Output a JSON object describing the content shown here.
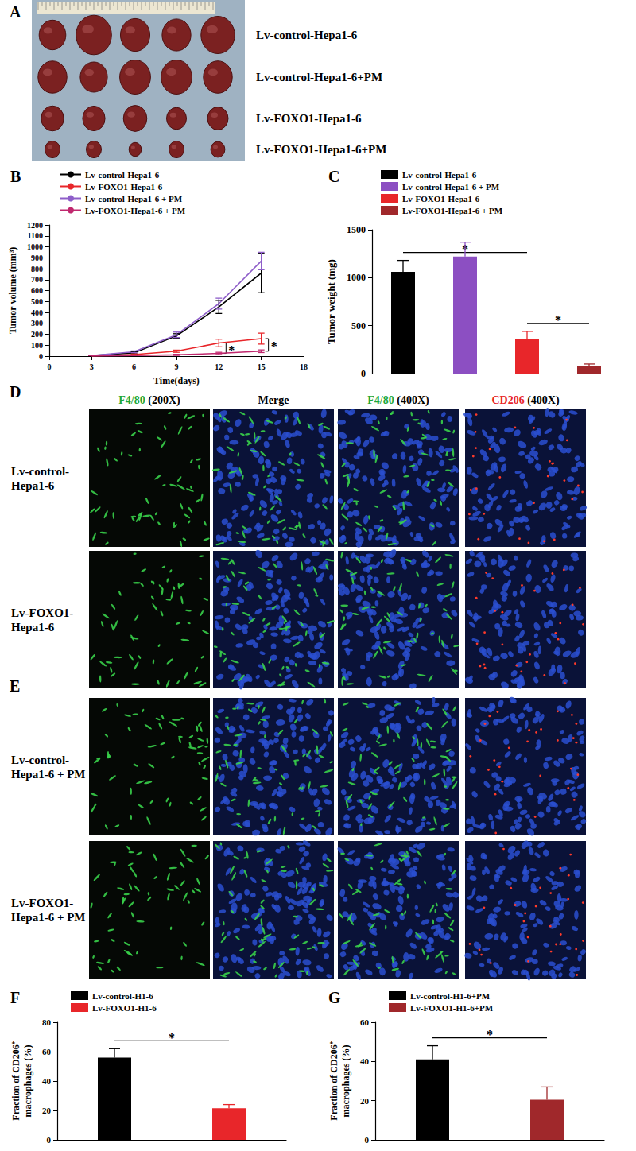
{
  "photo_panel": {
    "letter": "A",
    "rows": [
      "Lv-control-Hepa1-6",
      "Lv-control-Hepa1-6+PM",
      "Lv-FOXO1-Hepa1-6",
      "Lv-FOXO1-Hepa1-6+PM"
    ]
  },
  "micrograph_columns": [
    {
      "stain": "F4/80",
      "color": "#1fa83a",
      "magnification": "(200X)"
    },
    {
      "stain": "Merge",
      "color": "#000000"
    },
    {
      "stain": "F4/80",
      "color": "#1fa83a",
      "magnification": "(400X)"
    },
    {
      "stain": "CD206",
      "color": "#e8262a",
      "magnification": "(400X)"
    }
  ],
  "micrograph_panels": [
    {
      "letter": "D",
      "rows": [
        [
          "Lv-control-",
          "Hepa1-6"
        ],
        [
          "Lv-FOXO1-",
          "Hepa1-6"
        ]
      ]
    },
    {
      "letter": "E",
      "rows": [
        [
          "Lv-control-",
          "Hepa1-6 + PM"
        ],
        [
          "Lv-FOXO1-",
          "Hepa1-6 + PM"
        ]
      ]
    }
  ],
  "chart_data": [
    {
      "title": "B",
      "type": "line",
      "x_label": "Time(days)",
      "y_label": "Tumor volume (mm³)",
      "x": [
        3,
        6,
        9,
        12,
        15
      ],
      "xlim": [
        0,
        18
      ],
      "xticks": [
        0,
        3,
        6,
        9,
        12,
        15,
        18
      ],
      "ylim": [
        0,
        1200
      ],
      "yticks": [
        0,
        100,
        200,
        300,
        400,
        500,
        600,
        700,
        800,
        900,
        1000,
        1100,
        1200
      ],
      "grid": false,
      "legend": "upper left",
      "series": [
        {
          "name": "Lv-control-Hepa1-6",
          "color": "#000000",
          "values": [
            5,
            30,
            185,
            450,
            760
          ],
          "errors": [
            2,
            8,
            20,
            60,
            180
          ]
        },
        {
          "name": "Lv-FOXO1-Hepa1-6",
          "color": "#e8262a",
          "values": [
            2,
            15,
            45,
            120,
            160
          ],
          "errors": [
            1,
            5,
            10,
            35,
            50
          ]
        },
        {
          "name": "Lv-control-Hepa1-6 + PM",
          "color": "#8e5ec9",
          "values": [
            5,
            40,
            195,
            480,
            870
          ],
          "errors": [
            2,
            8,
            25,
            50,
            80
          ]
        },
        {
          "name": "Lv-FOXO1-Hepa1-6 + PM",
          "color": "#c0286e",
          "values": [
            1,
            5,
            12,
            25,
            45
          ],
          "errors": [
            1,
            3,
            5,
            10,
            12
          ]
        }
      ],
      "annotations": [
        "*",
        "*"
      ]
    },
    {
      "title": "C",
      "type": "bar",
      "y_label": "Tumor weight (mg)",
      "categories": [
        null,
        null,
        null,
        null
      ],
      "ylim": [
        0,
        1500
      ],
      "yticks": [
        0,
        500,
        1000,
        1500
      ],
      "grid": false,
      "legend": "upper left",
      "tick_labels": "y",
      "series": [
        {
          "name": "Lv-control-Hepa1-6",
          "color": "#000000",
          "values": [
            1060,
            null,
            null,
            null
          ],
          "errors": [
            120,
            null,
            null,
            null
          ]
        },
        {
          "name": "Lv-control-Hepa1-6 + PM",
          "color": "#8c4fc2",
          "values": [
            null,
            1220,
            null,
            null
          ],
          "errors": [
            null,
            150,
            null,
            null
          ]
        },
        {
          "name": "Lv-FOXO1-Hepa1-6",
          "color": "#e8262a",
          "values": [
            null,
            null,
            360,
            null
          ],
          "errors": [
            null,
            null,
            80,
            null
          ]
        },
        {
          "name": "Lv-FOXO1-Hepa1-6 + PM",
          "color": "#a0282b",
          "values": [
            null,
            null,
            null,
            75
          ],
          "errors": [
            null,
            null,
            null,
            25
          ]
        }
      ],
      "annotations": [
        "*",
        "*"
      ]
    },
    {
      "title": "F",
      "type": "bar",
      "y_label": "Fraction of CD206⁺\nmacrophages (%)",
      "categories": [
        null,
        null
      ],
      "ylim": [
        0,
        80
      ],
      "yticks": [
        0,
        20,
        40,
        60,
        80
      ],
      "grid": false,
      "legend": "upper left",
      "tick_labels": "y",
      "series": [
        {
          "name": "Lv-control-H1-6",
          "color": "#000000",
          "values": [
            56,
            null
          ],
          "errors": [
            6,
            null
          ]
        },
        {
          "name": "Lv-FOXO1-H1-6",
          "color": "#e8262a",
          "values": [
            null,
            21.5
          ],
          "errors": [
            null,
            2.5
          ]
        }
      ],
      "annotations": [
        "*"
      ]
    },
    {
      "title": "G",
      "type": "bar",
      "y_label": "Fraction of CD206⁺\nmacrophages (%)",
      "categories": [
        null,
        null
      ],
      "ylim": [
        0,
        60
      ],
      "yticks": [
        0,
        20,
        40,
        60
      ],
      "grid": false,
      "legend": "upper left",
      "tick_labels": "y",
      "series": [
        {
          "name": "Lv-control-H1-6+PM",
          "color": "#000000",
          "values": [
            41,
            null
          ],
          "errors": [
            7,
            null
          ]
        },
        {
          "name": "Lv-FOXO1-H1-6+PM",
          "color": "#a0282b",
          "values": [
            null,
            20.5
          ],
          "errors": [
            null,
            6.5
          ]
        }
      ],
      "annotations": [
        "*"
      ]
    }
  ]
}
